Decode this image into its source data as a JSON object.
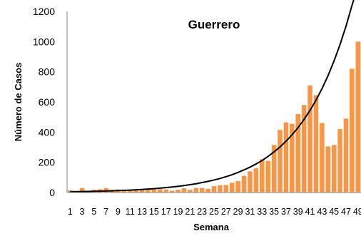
{
  "chart_data": {
    "type": "bar",
    "title": "Guerrero",
    "xlabel": "Semana",
    "ylabel": "Número de Casos",
    "ylim": [
      0,
      1200
    ],
    "yticks": [
      0,
      200,
      400,
      600,
      800,
      1000,
      1200
    ],
    "grid": false,
    "bar_color": "#F79646",
    "trend_color": "#000000",
    "categories": [
      "1",
      "2",
      "3",
      "4",
      "5",
      "6",
      "7",
      "8",
      "9",
      "10",
      "11",
      "12",
      "13",
      "14",
      "15",
      "16",
      "17",
      "18",
      "19",
      "20",
      "21",
      "22",
      "23",
      "24",
      "25",
      "26",
      "27",
      "28",
      "29",
      "30",
      "31",
      "32",
      "33",
      "34",
      "35",
      "36",
      "37",
      "38",
      "39",
      "40",
      "41",
      "42",
      "43",
      "44",
      "45",
      "46",
      "47",
      "48",
      "49"
    ],
    "tick_labels": [
      "1",
      "3",
      "5",
      "7",
      "9",
      "11",
      "13",
      "15",
      "17",
      "19",
      "21",
      "23",
      "25",
      "27",
      "29",
      "31",
      "33",
      "35",
      "37",
      "39",
      "41",
      "43",
      "45",
      "47",
      "49"
    ],
    "series": [
      {
        "type": "bar",
        "values": [
          15,
          8,
          30,
          10,
          18,
          22,
          30,
          18,
          20,
          20,
          18,
          22,
          20,
          18,
          20,
          22,
          20,
          12,
          18,
          28,
          18,
          30,
          30,
          25,
          42,
          48,
          50,
          65,
          75,
          110,
          140,
          160,
          220,
          210,
          315,
          415,
          465,
          455,
          520,
          580,
          710,
          645,
          460,
          305,
          315,
          420,
          490,
          820,
          1000
        ]
      },
      {
        "type": "line",
        "values": [
          5,
          5.6,
          6.3,
          7.1,
          8,
          9,
          10,
          11.3,
          12.7,
          14.3,
          16,
          18,
          20.3,
          22.8,
          25.6,
          28.8,
          32.4,
          36.5,
          41,
          46,
          52,
          58,
          66,
          74,
          83,
          93,
          105,
          118,
          133,
          150,
          168,
          189,
          212,
          239,
          269,
          302,
          340,
          382,
          430,
          484,
          544,
          612,
          688,
          774,
          871,
          980,
          1102,
          1240,
          1395
        ]
      }
    ]
  }
}
